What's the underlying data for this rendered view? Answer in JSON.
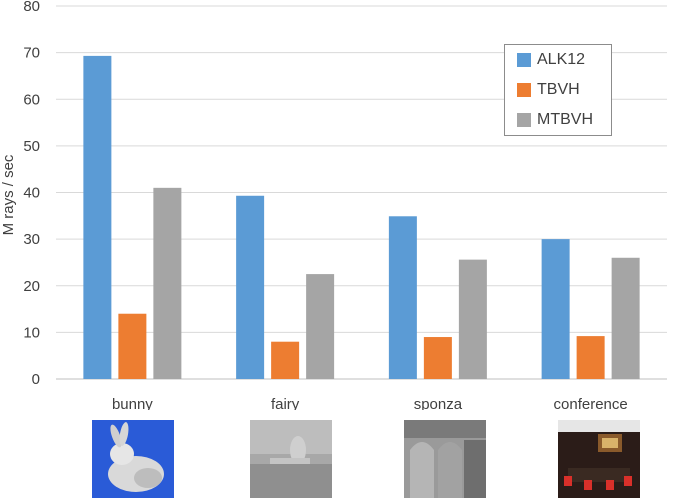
{
  "chart_data": {
    "type": "bar",
    "ylabel": "M rays / sec",
    "ylim": [
      0,
      80
    ],
    "yticks": [
      0,
      10,
      20,
      30,
      40,
      50,
      60,
      70,
      80
    ],
    "categories": [
      "bunny",
      "fairy",
      "sponza",
      "conference"
    ],
    "series": [
      {
        "name": "ALK12",
        "color": "#5b9bd5",
        "values": [
          69.3,
          39.3,
          34.9,
          30.0
        ]
      },
      {
        "name": "TBVH",
        "color": "#ed7d31",
        "values": [
          14.0,
          8.0,
          9.0,
          9.2
        ]
      },
      {
        "name": "MTBVH",
        "color": "#a5a5a5",
        "values": [
          41.0,
          22.5,
          25.6,
          26.0
        ]
      }
    ],
    "grid": true,
    "legend_position": "top-right"
  },
  "thumbnails": [
    {
      "name": "bunny-render",
      "bg": "#2a5bd7"
    },
    {
      "name": "fairy-render",
      "bg": "#9a9a9a"
    },
    {
      "name": "sponza-render",
      "bg": "#8a8a8a"
    },
    {
      "name": "conference-render",
      "bg": "#2b1c18"
    }
  ]
}
